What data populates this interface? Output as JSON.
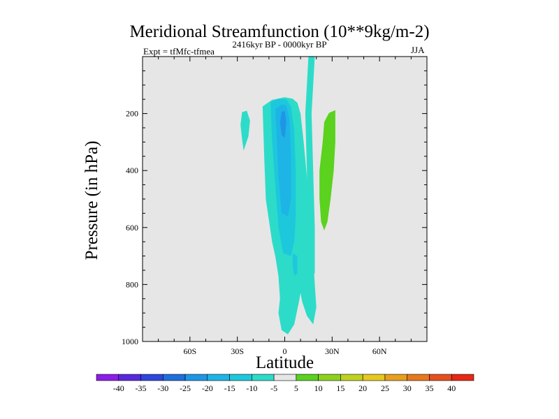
{
  "chart_data": {
    "type": "heatmap",
    "title": "Meridional Streamfunction (10**9kg/m-2)",
    "subtitle": "2416kyr BP - 0000kyr BP",
    "experiment": "Expt = tfMfc-tfmea",
    "season": "JJA",
    "xlabel": "Latitude",
    "ylabel": "Pressure (in hPa)",
    "xlim": [
      -90,
      90
    ],
    "ylim": [
      1000,
      0
    ],
    "x_ticks": [
      {
        "value": -60,
        "label": "60S"
      },
      {
        "value": -30,
        "label": "30S"
      },
      {
        "value": 0,
        "label": "0"
      },
      {
        "value": 30,
        "label": "30N"
      },
      {
        "value": 60,
        "label": "60N"
      }
    ],
    "y_ticks": [
      {
        "value": 200,
        "label": "200"
      },
      {
        "value": 400,
        "label": "400"
      },
      {
        "value": 600,
        "label": "600"
      },
      {
        "value": 800,
        "label": "800"
      },
      {
        "value": 1000,
        "label": "1000"
      }
    ],
    "background_color": "#e6e6e6",
    "colorbar": {
      "labels": [
        "-40",
        "-35",
        "-30",
        "-25",
        "-20",
        "-15",
        "-10",
        "-5",
        "5",
        "10",
        "15",
        "20",
        "25",
        "30",
        "35",
        "40"
      ],
      "colors": [
        "#8c1ee6",
        "#5a28dc",
        "#2d46dc",
        "#1e6edc",
        "#1e96e6",
        "#1eb4e6",
        "#1ec8dc",
        "#2ddcc8",
        "#e6e6e6",
        "#5ad21e",
        "#8cd21e",
        "#bed21e",
        "#e6c81e",
        "#e6a01e",
        "#e6781e",
        "#e6501e",
        "#e62814"
      ]
    },
    "contours": [
      {
        "name": "negative-main-cell",
        "value": "-5 to -10",
        "color": "#2ddcc8",
        "points": [
          [
            -14,
            175
          ],
          [
            -8,
            152
          ],
          [
            0,
            143
          ],
          [
            5,
            148
          ],
          [
            8,
            162
          ],
          [
            10,
            200
          ],
          [
            12,
            300
          ],
          [
            14,
            420
          ],
          [
            16,
            560
          ],
          [
            18,
            700
          ],
          [
            19,
            800
          ],
          [
            20,
            880
          ],
          [
            18,
            940
          ],
          [
            14,
            910
          ],
          [
            11,
            860
          ],
          [
            10,
            830
          ],
          [
            9,
            860
          ],
          [
            6,
            940
          ],
          [
            2,
            975
          ],
          [
            -2,
            960
          ],
          [
            -4,
            900
          ],
          [
            -3,
            850
          ],
          [
            -4,
            770
          ],
          [
            -6,
            700
          ],
          [
            -8,
            650
          ],
          [
            -12,
            500
          ],
          [
            -13,
            350
          ]
        ]
      },
      {
        "name": "jet-strip",
        "value": "-5",
        "color": "#2ddcc8",
        "points": [
          [
            15,
            -5
          ],
          [
            19,
            -5
          ],
          [
            18,
            100
          ],
          [
            17,
            200
          ],
          [
            18,
            400
          ],
          [
            19,
            600
          ],
          [
            19,
            760
          ],
          [
            16,
            780
          ],
          [
            15,
            600
          ],
          [
            14,
            400
          ],
          [
            13,
            200
          ],
          [
            14,
            100
          ]
        ]
      },
      {
        "name": "negative-inner-cell",
        "value": "-15",
        "color": "#1ec8dc",
        "points": [
          [
            -9,
            160
          ],
          [
            -4,
            148
          ],
          [
            1,
            150
          ],
          [
            4,
            175
          ],
          [
            6,
            260
          ],
          [
            7,
            400
          ],
          [
            7,
            560
          ],
          [
            6,
            650
          ],
          [
            4,
            700
          ],
          [
            -1,
            690
          ],
          [
            -4,
            600
          ],
          [
            -6,
            450
          ],
          [
            -8,
            300
          ]
        ]
      },
      {
        "name": "negative-core-cell",
        "value": "-20",
        "color": "#1eb4e6",
        "points": [
          [
            -6,
            185
          ],
          [
            -2,
            168
          ],
          [
            1,
            172
          ],
          [
            3,
            220
          ],
          [
            4,
            340
          ],
          [
            4,
            500
          ],
          [
            2,
            560
          ],
          [
            -2,
            550
          ],
          [
            -4,
            420
          ],
          [
            -5,
            300
          ]
        ]
      },
      {
        "name": "negative-max",
        "value": "-25",
        "color": "#1e96e6",
        "points": [
          [
            -2,
            195
          ],
          [
            0,
            190
          ],
          [
            1,
            230
          ],
          [
            0,
            285
          ],
          [
            -2,
            275
          ],
          [
            -3,
            230
          ]
        ]
      },
      {
        "name": "southern-small-cell",
        "value": "-5",
        "color": "#2ddcc8",
        "points": [
          [
            -27,
            195
          ],
          [
            -24,
            190
          ],
          [
            -22,
            225
          ],
          [
            -23,
            280
          ],
          [
            -26,
            330
          ],
          [
            -27,
            290
          ],
          [
            -28,
            240
          ]
        ]
      },
      {
        "name": "positive-cell",
        "value": "5 to 10",
        "color": "#5ad21e",
        "points": [
          [
            28,
            198
          ],
          [
            32,
            188
          ],
          [
            32,
            300
          ],
          [
            31,
            400
          ],
          [
            29,
            500
          ],
          [
            27,
            580
          ],
          [
            25,
            610
          ],
          [
            23,
            580
          ],
          [
            22,
            500
          ],
          [
            22,
            400
          ],
          [
            24,
            300
          ],
          [
            25,
            230
          ]
        ]
      },
      {
        "name": "negative-speck",
        "value": "-10",
        "color": "#1ec8dc",
        "points": [
          [
            5,
            690
          ],
          [
            8,
            700
          ],
          [
            8,
            760
          ],
          [
            6,
            770
          ],
          [
            5,
            730
          ]
        ]
      }
    ]
  }
}
